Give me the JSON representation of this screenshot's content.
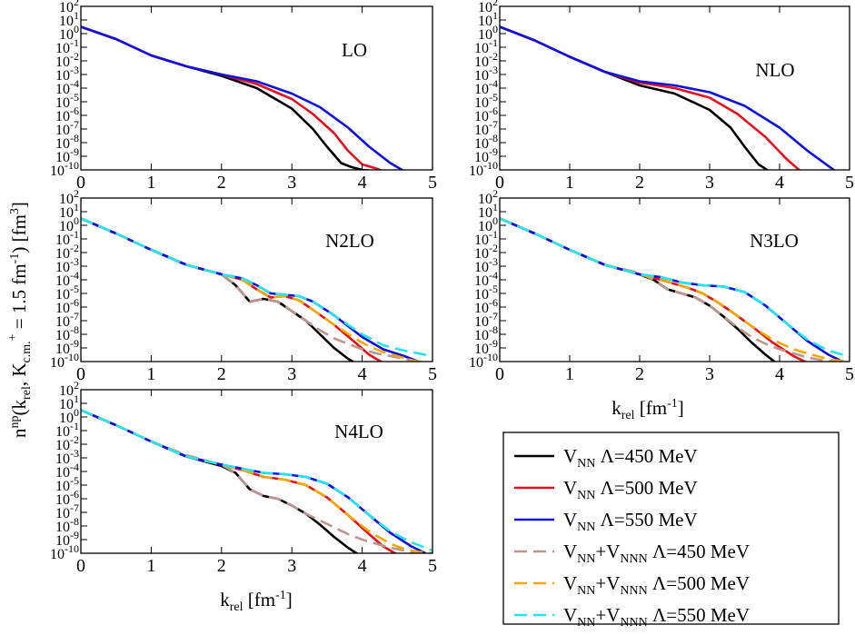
{
  "figure": {
    "ylabel_parts": {
      "base": "n",
      "sup": "np",
      "mid": "(k",
      "sub1": "rel",
      "mid2": ", K",
      "sub2": "c.m.",
      "sup2": "+",
      "rest": " = 1.5 fm",
      "sup3": "-1",
      "end": ") [fm",
      "sup4": "3",
      "close": "]"
    },
    "xlabel_parts": {
      "base": "k",
      "sub": "rel",
      "mid": " [fm",
      "sup": "-1",
      "end": "]"
    }
  },
  "legend": [
    {
      "prefix": "V",
      "sub1": "NN",
      "mid": "",
      "sub2": "",
      "suffix": " Λ=450 MeV",
      "color": "#000000",
      "dashed": false
    },
    {
      "prefix": "V",
      "sub1": "NN",
      "mid": "",
      "sub2": "",
      "suffix": " Λ=500 MeV",
      "color": "#e8101c",
      "dashed": false
    },
    {
      "prefix": "V",
      "sub1": "NN",
      "mid": "",
      "sub2": "",
      "suffix": " Λ=550 MeV",
      "color": "#1010e0",
      "dashed": false
    },
    {
      "prefix": "V",
      "sub1": "NN",
      "mid": "+V",
      "sub2": "NNN",
      "suffix": " Λ=450 MeV",
      "color": "#bc958f",
      "dashed": true
    },
    {
      "prefix": "V",
      "sub1": "NN",
      "mid": "+V",
      "sub2": "NNN",
      "suffix": " Λ=500 MeV",
      "color": "#f5a800",
      "dashed": true
    },
    {
      "prefix": "V",
      "sub1": "NN",
      "mid": "+V",
      "sub2": "NNN",
      "suffix": " Λ=550 MeV",
      "color": "#22e6f2",
      "dashed": true
    }
  ],
  "chart_data": [
    {
      "type": "line",
      "title": "LO",
      "xlim": [
        0,
        5
      ],
      "ylog_exponent_range": [
        -10,
        2
      ],
      "xticks": [
        "0",
        "1",
        "2",
        "3",
        "4",
        "5"
      ],
      "series": [
        {
          "name": "V_NN Λ=450 MeV",
          "color": "#000000",
          "dashed": false,
          "x": [
            0,
            0.5,
            1,
            1.5,
            2,
            2.5,
            3,
            3.3,
            3.5,
            3.7,
            3.85,
            4.0,
            4.2
          ],
          "log10y": [
            0.5,
            -0.4,
            -1.6,
            -2.4,
            -3.1,
            -4.0,
            -5.5,
            -7.0,
            -8.3,
            -9.5,
            -9.8,
            -10,
            -10.1
          ]
        },
        {
          "name": "V_NN Λ=500 MeV",
          "color": "#e8101c",
          "dashed": false,
          "x": [
            0,
            0.5,
            1,
            1.5,
            2,
            2.5,
            3,
            3.3,
            3.6,
            3.8,
            4.0,
            4.2,
            4.3
          ],
          "log10y": [
            0.5,
            -0.4,
            -1.6,
            -2.4,
            -3.0,
            -3.7,
            -4.8,
            -5.9,
            -7.3,
            -8.6,
            -9.6,
            -9.9,
            -10.1
          ]
        },
        {
          "name": "V_NN Λ=550 MeV",
          "color": "#1010e0",
          "dashed": false,
          "x": [
            0,
            0.5,
            1,
            1.5,
            2,
            2.5,
            3,
            3.4,
            3.8,
            4.1,
            4.4,
            4.6
          ],
          "log10y": [
            0.5,
            -0.4,
            -1.6,
            -2.4,
            -3.0,
            -3.5,
            -4.4,
            -5.4,
            -6.9,
            -8.3,
            -9.5,
            -10.1
          ]
        }
      ]
    },
    {
      "type": "line",
      "title": "NLO",
      "xlim": [
        0,
        5
      ],
      "ylog_exponent_range": [
        -10,
        2
      ],
      "xticks": [
        "0",
        "1",
        "2",
        "3",
        "4",
        "5"
      ],
      "series": [
        {
          "name": "V_NN Λ=450 MeV",
          "color": "#000000",
          "dashed": false,
          "x": [
            0,
            0.5,
            1,
            1.5,
            2,
            2.5,
            3,
            3.3,
            3.5,
            3.7,
            3.85
          ],
          "log10y": [
            0.5,
            -0.5,
            -1.7,
            -2.8,
            -3.8,
            -4.4,
            -5.6,
            -6.9,
            -8.3,
            -9.6,
            -10.1
          ]
        },
        {
          "name": "V_NN Λ=500 MeV",
          "color": "#e8101c",
          "dashed": false,
          "x": [
            0,
            0.5,
            1,
            1.5,
            2,
            2.5,
            3,
            3.4,
            3.8,
            4.1,
            4.3
          ],
          "log10y": [
            0.5,
            -0.5,
            -1.7,
            -2.8,
            -3.6,
            -4.0,
            -4.7,
            -5.9,
            -7.6,
            -9.2,
            -10.1
          ]
        },
        {
          "name": "V_NN Λ=550 MeV",
          "color": "#1010e0",
          "dashed": false,
          "x": [
            0,
            0.5,
            1,
            1.5,
            2,
            2.5,
            3,
            3.5,
            4.0,
            4.4,
            4.8
          ],
          "log10y": [
            0.5,
            -0.5,
            -1.7,
            -2.8,
            -3.5,
            -3.8,
            -4.3,
            -5.3,
            -6.9,
            -8.6,
            -10.1
          ]
        }
      ]
    },
    {
      "type": "line",
      "title": "N2LO",
      "xlim": [
        0,
        5
      ],
      "ylog_exponent_range": [
        -10,
        2
      ],
      "xticks": [
        "0",
        "1",
        "2",
        "3",
        "4",
        "5"
      ],
      "series": [
        {
          "name": "V_NN Λ=450 MeV",
          "color": "#000000",
          "dashed": false,
          "x": [
            0,
            0.5,
            1,
            1.5,
            2,
            2.2,
            2.4,
            2.6,
            2.8,
            3,
            3.2,
            3.4,
            3.6,
            3.8,
            3.9
          ],
          "log10y": [
            0.5,
            -0.6,
            -1.8,
            -2.9,
            -3.6,
            -4.4,
            -5.6,
            -5.4,
            -5.6,
            -6.3,
            -7.0,
            -8.0,
            -9.0,
            -9.8,
            -10.1
          ]
        },
        {
          "name": "V_NN Λ=500 MeV",
          "color": "#e8101c",
          "dashed": false,
          "x": [
            0,
            0.5,
            1,
            1.5,
            2,
            2.3,
            2.5,
            2.7,
            2.9,
            3.1,
            3.3,
            3.6,
            3.9,
            4.1,
            4.3
          ],
          "log10y": [
            0.5,
            -0.6,
            -1.8,
            -2.9,
            -3.6,
            -4.0,
            -4.7,
            -5.3,
            -5.2,
            -5.5,
            -6.2,
            -7.3,
            -8.6,
            -9.5,
            -10.1
          ]
        },
        {
          "name": "V_NN Λ=550 MeV",
          "color": "#1010e0",
          "dashed": false,
          "x": [
            0,
            0.5,
            1,
            1.5,
            2,
            2.3,
            2.5,
            2.7,
            2.9,
            3.1,
            3.3,
            3.6,
            4.0,
            4.3,
            4.6,
            4.8
          ],
          "log10y": [
            0.5,
            -0.6,
            -1.8,
            -2.9,
            -3.6,
            -3.9,
            -4.4,
            -5.0,
            -5.1,
            -5.2,
            -5.6,
            -6.6,
            -8.2,
            -9.1,
            -9.6,
            -10.0
          ]
        },
        {
          "name": "V_NN+V_NNN Λ=450 MeV",
          "color": "#bc958f",
          "dashed": true,
          "x": [
            0,
            0.5,
            1,
            1.5,
            2,
            2.2,
            2.4,
            2.6,
            2.8,
            3,
            3.2,
            3.4,
            3.6,
            3.8,
            4.0,
            4.2,
            4.4,
            4.6,
            4.8
          ],
          "log10y": [
            0.5,
            -0.6,
            -1.8,
            -2.9,
            -3.6,
            -4.4,
            -5.6,
            -5.4,
            -5.6,
            -6.3,
            -7.0,
            -7.7,
            -8.3,
            -8.7,
            -9.1,
            -9.4,
            -9.6,
            -9.8,
            -10.0
          ]
        },
        {
          "name": "V_NN+V_NNN Λ=500 MeV",
          "color": "#f5a800",
          "dashed": true,
          "x": [
            0,
            0.5,
            1,
            1.5,
            2,
            2.3,
            2.5,
            2.7,
            2.9,
            3.1,
            3.3,
            3.6,
            3.9,
            4.1,
            4.3,
            4.5,
            4.7,
            4.9
          ],
          "log10y": [
            0.5,
            -0.6,
            -1.8,
            -2.9,
            -3.6,
            -4.0,
            -4.7,
            -5.3,
            -5.2,
            -5.5,
            -6.2,
            -7.3,
            -8.3,
            -8.9,
            -9.3,
            -9.6,
            -9.9,
            -10.1
          ]
        },
        {
          "name": "V_NN+V_NNN Λ=550 MeV",
          "color": "#22e6f2",
          "dashed": true,
          "x": [
            0,
            0.5,
            1,
            1.5,
            2,
            2.3,
            2.5,
            2.7,
            2.9,
            3.1,
            3.3,
            3.6,
            4.0,
            4.3,
            4.6,
            4.8,
            5.0
          ],
          "log10y": [
            0.5,
            -0.6,
            -1.8,
            -2.9,
            -3.6,
            -3.9,
            -4.4,
            -5.0,
            -5.1,
            -5.2,
            -5.6,
            -6.6,
            -8.0,
            -8.8,
            -9.2,
            -9.4,
            -9.6
          ]
        }
      ]
    },
    {
      "type": "line",
      "title": "N3LO",
      "xlim": [
        0,
        5
      ],
      "ylog_exponent_range": [
        -10,
        2
      ],
      "xticks": [
        "0",
        "1",
        "2",
        "3",
        "4",
        "5"
      ],
      "series": [
        {
          "name": "V_NN Λ=450 MeV",
          "color": "#000000",
          "dashed": false,
          "x": [
            0,
            0.5,
            1,
            1.5,
            2,
            2.2,
            2.4,
            2.6,
            2.8,
            3,
            3.2,
            3.4,
            3.6,
            3.8,
            3.95
          ],
          "log10y": [
            0.5,
            -0.6,
            -1.8,
            -2.9,
            -3.6,
            -4.0,
            -4.7,
            -5.0,
            -5.3,
            -5.9,
            -6.7,
            -7.6,
            -8.6,
            -9.5,
            -10.1
          ]
        },
        {
          "name": "V_NN Λ=500 MeV",
          "color": "#e8101c",
          "dashed": false,
          "x": [
            0,
            0.5,
            1,
            1.5,
            2,
            2.3,
            2.5,
            2.7,
            2.9,
            3.1,
            3.3,
            3.6,
            3.9,
            4.2,
            4.4
          ],
          "log10y": [
            0.5,
            -0.6,
            -1.8,
            -2.9,
            -3.6,
            -4.0,
            -4.3,
            -4.6,
            -5.0,
            -5.6,
            -6.3,
            -7.4,
            -8.6,
            -9.6,
            -10.1
          ]
        },
        {
          "name": "V_NN Λ=550 MeV",
          "color": "#1010e0",
          "dashed": false,
          "x": [
            0,
            0.5,
            1,
            1.5,
            2,
            2.3,
            2.6,
            2.9,
            3.2,
            3.5,
            3.8,
            4.1,
            4.4,
            4.7,
            4.9
          ],
          "log10y": [
            0.5,
            -0.6,
            -1.8,
            -2.9,
            -3.6,
            -3.8,
            -4.2,
            -4.4,
            -4.5,
            -4.9,
            -5.9,
            -7.2,
            -8.5,
            -9.5,
            -10.0
          ]
        },
        {
          "name": "V_NN+V_NNN Λ=450 MeV",
          "color": "#bc958f",
          "dashed": true,
          "x": [
            0,
            0.5,
            1,
            1.5,
            2,
            2.2,
            2.4,
            2.6,
            2.8,
            3,
            3.2,
            3.4,
            3.6,
            3.8,
            4.0,
            4.2,
            4.4,
            4.6,
            4.8
          ],
          "log10y": [
            0.5,
            -0.6,
            -1.8,
            -2.9,
            -3.5,
            -4.0,
            -4.7,
            -5.0,
            -5.3,
            -5.9,
            -6.7,
            -7.5,
            -8.2,
            -8.7,
            -9.1,
            -9.4,
            -9.7,
            -9.9,
            -10.0
          ]
        },
        {
          "name": "V_NN+V_NNN Λ=500 MeV",
          "color": "#f5a800",
          "dashed": true,
          "x": [
            0,
            0.5,
            1,
            1.5,
            2,
            2.3,
            2.5,
            2.7,
            2.9,
            3.1,
            3.3,
            3.6,
            3.9,
            4.2,
            4.4,
            4.6,
            4.8,
            5.0
          ],
          "log10y": [
            0.5,
            -0.6,
            -1.8,
            -2.9,
            -3.6,
            -4.0,
            -4.3,
            -4.6,
            -5.0,
            -5.6,
            -6.3,
            -7.4,
            -8.4,
            -9.1,
            -9.4,
            -9.7,
            -9.9,
            -10.0
          ]
        },
        {
          "name": "V_NN+V_NNN Λ=550 MeV",
          "color": "#22e6f2",
          "dashed": true,
          "x": [
            0,
            0.5,
            1,
            1.5,
            2,
            2.3,
            2.6,
            2.9,
            3.2,
            3.5,
            3.8,
            4.1,
            4.4,
            4.7,
            4.9,
            5.0
          ],
          "log10y": [
            0.5,
            -0.6,
            -1.8,
            -2.9,
            -3.6,
            -3.8,
            -4.2,
            -4.4,
            -4.5,
            -4.9,
            -5.9,
            -7.2,
            -8.4,
            -9.2,
            -9.5,
            -9.6
          ]
        }
      ]
    },
    {
      "type": "line",
      "title": "N4LO",
      "xlim": [
        0,
        5
      ],
      "ylog_exponent_range": [
        -10,
        2
      ],
      "xticks": [
        "0",
        "1",
        "2",
        "3",
        "4",
        "5"
      ],
      "series": [
        {
          "name": "V_NN Λ=450 MeV",
          "color": "#000000",
          "dashed": false,
          "x": [
            0,
            0.5,
            1,
            1.5,
            2,
            2.2,
            2.4,
            2.6,
            2.8,
            3,
            3.2,
            3.4,
            3.6,
            3.8,
            3.95
          ],
          "log10y": [
            0.5,
            -0.6,
            -1.8,
            -2.9,
            -3.6,
            -4.1,
            -5.3,
            -5.8,
            -6.0,
            -6.5,
            -7.1,
            -7.9,
            -8.8,
            -9.6,
            -10.1
          ]
        },
        {
          "name": "V_NN Λ=500 MeV",
          "color": "#e8101c",
          "dashed": false,
          "x": [
            0,
            0.5,
            1,
            1.5,
            2,
            2.3,
            2.6,
            2.9,
            3.2,
            3.5,
            3.8,
            4.1,
            4.3,
            4.5
          ],
          "log10y": [
            0.5,
            -0.6,
            -1.8,
            -2.9,
            -3.5,
            -3.9,
            -4.4,
            -4.6,
            -5.0,
            -5.9,
            -7.2,
            -8.6,
            -9.5,
            -10.1
          ]
        },
        {
          "name": "V_NN Λ=550 MeV",
          "color": "#1010e0",
          "dashed": false,
          "x": [
            0,
            0.5,
            1,
            1.5,
            2,
            2.3,
            2.6,
            2.9,
            3.2,
            3.5,
            3.8,
            4.1,
            4.4,
            4.7,
            4.9
          ],
          "log10y": [
            0.5,
            -0.6,
            -1.8,
            -2.9,
            -3.5,
            -3.8,
            -4.1,
            -4.2,
            -4.4,
            -4.9,
            -5.9,
            -7.2,
            -8.5,
            -9.5,
            -10.0
          ]
        },
        {
          "name": "V_NN+V_NNN Λ=450 MeV",
          "color": "#bc958f",
          "dashed": true,
          "x": [
            0,
            0.5,
            1,
            1.5,
            2,
            2.2,
            2.4,
            2.6,
            2.8,
            3,
            3.2,
            3.4,
            3.6,
            3.8,
            4.0,
            4.2,
            4.4,
            4.6,
            4.8
          ],
          "log10y": [
            0.5,
            -0.6,
            -1.8,
            -2.8,
            -3.5,
            -4.1,
            -5.3,
            -5.8,
            -6.0,
            -6.5,
            -7.1,
            -7.6,
            -8.1,
            -8.6,
            -9.0,
            -9.3,
            -9.6,
            -9.8,
            -10.0
          ]
        },
        {
          "name": "V_NN+V_NNN Λ=500 MeV",
          "color": "#f5a800",
          "dashed": true,
          "x": [
            0,
            0.5,
            1,
            1.5,
            2,
            2.3,
            2.6,
            2.9,
            3.2,
            3.5,
            3.8,
            4.1,
            4.4,
            4.6,
            4.8,
            5.0
          ],
          "log10y": [
            0.5,
            -0.6,
            -1.8,
            -2.9,
            -3.5,
            -3.9,
            -4.4,
            -4.6,
            -5.0,
            -5.9,
            -7.2,
            -8.4,
            -9.3,
            -9.7,
            -9.9,
            -10.0
          ]
        },
        {
          "name": "V_NN+V_NNN Λ=550 MeV",
          "color": "#22e6f2",
          "dashed": true,
          "x": [
            0,
            0.5,
            1,
            1.5,
            2,
            2.3,
            2.6,
            2.9,
            3.2,
            3.5,
            3.8,
            4.1,
            4.4,
            4.7,
            4.9,
            5.0
          ],
          "log10y": [
            0.5,
            -0.6,
            -1.8,
            -2.9,
            -3.5,
            -3.8,
            -4.1,
            -4.2,
            -4.4,
            -4.9,
            -5.9,
            -7.2,
            -8.4,
            -9.2,
            -9.6,
            -9.8
          ]
        }
      ]
    }
  ]
}
